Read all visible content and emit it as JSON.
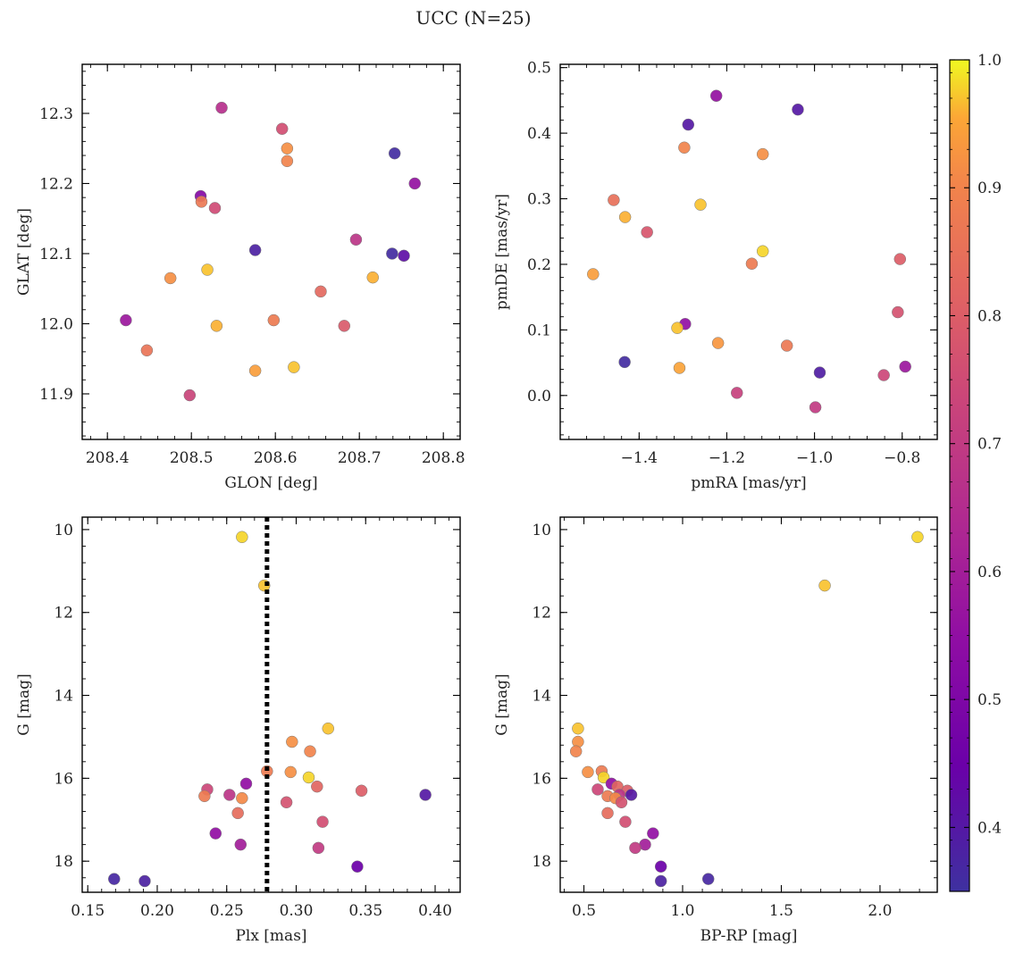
{
  "figure": {
    "title": "UCC (N=25)"
  },
  "colorbar": {
    "min": 0.35,
    "max": 1.0,
    "ticks": [
      0.4,
      0.5,
      0.6,
      0.7,
      0.8,
      0.9,
      1.0
    ],
    "tick_labels": [
      "0.4",
      "0.5",
      "0.6",
      "0.7",
      "0.8",
      "0.9",
      "1.0"
    ],
    "colormap": "plasma"
  },
  "chart_data": [
    {
      "type": "scatter",
      "xlabel": "GLON [deg]",
      "ylabel": "GLAT [deg]",
      "xlim": [
        208.37,
        208.82
      ],
      "ylim": [
        11.835,
        12.37
      ],
      "xticks": [
        208.4,
        208.5,
        208.6,
        208.7,
        208.8
      ],
      "xtick_labels": [
        "208.4",
        "208.5",
        "208.6",
        "208.7",
        "208.8"
      ],
      "yticks": [
        11.9,
        12.0,
        12.1,
        12.2,
        12.3
      ],
      "ytick_labels": [
        "11.9",
        "12.0",
        "12.1",
        "12.2",
        "12.3"
      ],
      "points": [
        {
          "x": 208.536,
          "y": 12.308,
          "c": 0.66
        },
        {
          "x": 208.608,
          "y": 12.278,
          "c": 0.76
        },
        {
          "x": 208.614,
          "y": 12.25,
          "c": 0.92
        },
        {
          "x": 208.614,
          "y": 12.232,
          "c": 0.9
        },
        {
          "x": 208.742,
          "y": 12.243,
          "c": 0.36
        },
        {
          "x": 208.766,
          "y": 12.2,
          "c": 0.56
        },
        {
          "x": 208.511,
          "y": 12.182,
          "c": 0.52
        },
        {
          "x": 208.512,
          "y": 12.174,
          "c": 0.87
        },
        {
          "x": 208.528,
          "y": 12.165,
          "c": 0.75
        },
        {
          "x": 208.696,
          "y": 12.12,
          "c": 0.68
        },
        {
          "x": 208.576,
          "y": 12.105,
          "c": 0.38
        },
        {
          "x": 208.739,
          "y": 12.1,
          "c": 0.36
        },
        {
          "x": 208.753,
          "y": 12.097,
          "c": 0.42
        },
        {
          "x": 208.519,
          "y": 12.077,
          "c": 0.97
        },
        {
          "x": 208.475,
          "y": 12.065,
          "c": 0.92
        },
        {
          "x": 208.716,
          "y": 12.066,
          "c": 0.96
        },
        {
          "x": 208.654,
          "y": 12.046,
          "c": 0.83
        },
        {
          "x": 208.422,
          "y": 12.005,
          "c": 0.58
        },
        {
          "x": 208.598,
          "y": 12.005,
          "c": 0.88
        },
        {
          "x": 208.53,
          "y": 11.997,
          "c": 0.96
        },
        {
          "x": 208.682,
          "y": 11.997,
          "c": 0.79
        },
        {
          "x": 208.447,
          "y": 11.962,
          "c": 0.86
        },
        {
          "x": 208.576,
          "y": 11.933,
          "c": 0.94
        },
        {
          "x": 208.622,
          "y": 11.938,
          "c": 0.97
        },
        {
          "x": 208.498,
          "y": 11.898,
          "c": 0.73
        }
      ]
    },
    {
      "type": "scatter",
      "xlabel": "pmRA [mas/yr]",
      "ylabel": "pmDE [mas/yr]",
      "xlim": [
        -1.58,
        -0.72
      ],
      "ylim": [
        -0.067,
        0.505
      ],
      "xticks": [
        -1.4,
        -1.2,
        -1.0,
        -0.8
      ],
      "xtick_labels": [
        "−1.4",
        "−1.2",
        "−1.0",
        "−0.8"
      ],
      "yticks": [
        0.0,
        0.1,
        0.2,
        0.3,
        0.4,
        0.5
      ],
      "ytick_labels": [
        "0.0",
        "0.1",
        "0.2",
        "0.3",
        "0.4",
        "0.5"
      ],
      "points": [
        {
          "x": -1.224,
          "y": 0.457,
          "c": 0.56
        },
        {
          "x": -1.038,
          "y": 0.436,
          "c": 0.4
        },
        {
          "x": -1.288,
          "y": 0.413,
          "c": 0.4
        },
        {
          "x": -1.297,
          "y": 0.378,
          "c": 0.9
        },
        {
          "x": -1.118,
          "y": 0.368,
          "c": 0.92
        },
        {
          "x": -1.458,
          "y": 0.298,
          "c": 0.85
        },
        {
          "x": -1.26,
          "y": 0.291,
          "c": 0.97
        },
        {
          "x": -1.432,
          "y": 0.272,
          "c": 0.96
        },
        {
          "x": -1.382,
          "y": 0.249,
          "c": 0.78
        },
        {
          "x": -1.118,
          "y": 0.22,
          "c": 0.98
        },
        {
          "x": -0.805,
          "y": 0.208,
          "c": 0.8
        },
        {
          "x": -1.143,
          "y": 0.201,
          "c": 0.88
        },
        {
          "x": -1.505,
          "y": 0.185,
          "c": 0.94
        },
        {
          "x": -0.81,
          "y": 0.127,
          "c": 0.77
        },
        {
          "x": -1.295,
          "y": 0.109,
          "c": 0.55
        },
        {
          "x": -1.313,
          "y": 0.103,
          "c": 0.97
        },
        {
          "x": -1.22,
          "y": 0.08,
          "c": 0.93
        },
        {
          "x": -1.063,
          "y": 0.076,
          "c": 0.87
        },
        {
          "x": -1.433,
          "y": 0.051,
          "c": 0.36
        },
        {
          "x": -1.308,
          "y": 0.042,
          "c": 0.95
        },
        {
          "x": -0.793,
          "y": 0.044,
          "c": 0.58
        },
        {
          "x": -0.988,
          "y": 0.035,
          "c": 0.39
        },
        {
          "x": -1.177,
          "y": 0.004,
          "c": 0.72
        },
        {
          "x": -0.842,
          "y": 0.031,
          "c": 0.74
        },
        {
          "x": -0.998,
          "y": -0.018,
          "c": 0.7
        }
      ]
    },
    {
      "type": "scatter",
      "xlabel": "Plx [mas]",
      "ylabel": "G [mag]",
      "xlim": [
        0.146,
        0.418
      ],
      "ylim": [
        18.75,
        9.7
      ],
      "y_inverted": true,
      "xticks": [
        0.15,
        0.2,
        0.25,
        0.3,
        0.35,
        0.4
      ],
      "xtick_labels": [
        "0.15",
        "0.20",
        "0.25",
        "0.30",
        "0.35",
        "0.40"
      ],
      "yticks": [
        10,
        12,
        14,
        16,
        18
      ],
      "ytick_labels": [
        "10",
        "12",
        "14",
        "16",
        "18"
      ],
      "vline": {
        "x": 0.279,
        "style": "dotted"
      },
      "points": [
        {
          "x": 0.261,
          "y": 10.18,
          "c": 0.98
        },
        {
          "x": 0.277,
          "y": 11.35,
          "c": 0.97
        },
        {
          "x": 0.323,
          "y": 14.8,
          "c": 0.97
        },
        {
          "x": 0.297,
          "y": 15.12,
          "c": 0.92
        },
        {
          "x": 0.31,
          "y": 15.35,
          "c": 0.9
        },
        {
          "x": 0.279,
          "y": 15.83,
          "c": 0.88
        },
        {
          "x": 0.296,
          "y": 15.85,
          "c": 0.92
        },
        {
          "x": 0.309,
          "y": 15.98,
          "c": 0.98
        },
        {
          "x": 0.264,
          "y": 16.13,
          "c": 0.55
        },
        {
          "x": 0.315,
          "y": 16.2,
          "c": 0.82
        },
        {
          "x": 0.236,
          "y": 16.27,
          "c": 0.74
        },
        {
          "x": 0.347,
          "y": 16.3,
          "c": 0.8
        },
        {
          "x": 0.252,
          "y": 16.4,
          "c": 0.68
        },
        {
          "x": 0.234,
          "y": 16.43,
          "c": 0.88
        },
        {
          "x": 0.393,
          "y": 16.4,
          "c": 0.4
        },
        {
          "x": 0.261,
          "y": 16.48,
          "c": 0.91
        },
        {
          "x": 0.293,
          "y": 16.58,
          "c": 0.77
        },
        {
          "x": 0.258,
          "y": 16.84,
          "c": 0.84
        },
        {
          "x": 0.319,
          "y": 17.05,
          "c": 0.76
        },
        {
          "x": 0.242,
          "y": 17.33,
          "c": 0.55
        },
        {
          "x": 0.26,
          "y": 17.6,
          "c": 0.6
        },
        {
          "x": 0.316,
          "y": 17.68,
          "c": 0.7
        },
        {
          "x": 0.344,
          "y": 18.13,
          "c": 0.45
        },
        {
          "x": 0.169,
          "y": 18.43,
          "c": 0.37
        },
        {
          "x": 0.191,
          "y": 18.48,
          "c": 0.38
        }
      ]
    },
    {
      "type": "scatter",
      "xlabel": "BP-RP [mag]",
      "ylabel": "G [mag]",
      "xlim": [
        0.38,
        2.29
      ],
      "ylim": [
        18.75,
        9.7
      ],
      "y_inverted": true,
      "xticks": [
        0.5,
        1.0,
        1.5,
        2.0
      ],
      "xtick_labels": [
        "0.5",
        "1.0",
        "1.5",
        "2.0"
      ],
      "yticks": [
        10,
        12,
        14,
        16,
        18
      ],
      "ytick_labels": [
        "10",
        "12",
        "14",
        "16",
        "18"
      ],
      "points": [
        {
          "x": 2.19,
          "y": 10.18,
          "c": 0.98
        },
        {
          "x": 1.72,
          "y": 11.35,
          "c": 0.97
        },
        {
          "x": 0.47,
          "y": 14.8,
          "c": 0.97
        },
        {
          "x": 0.47,
          "y": 15.12,
          "c": 0.92
        },
        {
          "x": 0.46,
          "y": 15.35,
          "c": 0.9
        },
        {
          "x": 0.52,
          "y": 15.85,
          "c": 0.92
        },
        {
          "x": 0.59,
          "y": 15.83,
          "c": 0.88
        },
        {
          "x": 0.6,
          "y": 15.98,
          "c": 0.98
        },
        {
          "x": 0.64,
          "y": 16.13,
          "c": 0.55
        },
        {
          "x": 0.57,
          "y": 16.27,
          "c": 0.74
        },
        {
          "x": 0.67,
          "y": 16.2,
          "c": 0.82
        },
        {
          "x": 0.72,
          "y": 16.3,
          "c": 0.8
        },
        {
          "x": 0.68,
          "y": 16.4,
          "c": 0.68
        },
        {
          "x": 0.62,
          "y": 16.43,
          "c": 0.88
        },
        {
          "x": 0.74,
          "y": 16.4,
          "c": 0.4
        },
        {
          "x": 0.66,
          "y": 16.48,
          "c": 0.91
        },
        {
          "x": 0.69,
          "y": 16.58,
          "c": 0.77
        },
        {
          "x": 0.62,
          "y": 16.84,
          "c": 0.84
        },
        {
          "x": 0.71,
          "y": 17.05,
          "c": 0.76
        },
        {
          "x": 0.85,
          "y": 17.33,
          "c": 0.55
        },
        {
          "x": 0.81,
          "y": 17.6,
          "c": 0.6
        },
        {
          "x": 0.76,
          "y": 17.68,
          "c": 0.7
        },
        {
          "x": 0.89,
          "y": 18.13,
          "c": 0.45
        },
        {
          "x": 1.13,
          "y": 18.43,
          "c": 0.37
        },
        {
          "x": 0.89,
          "y": 18.48,
          "c": 0.38
        }
      ]
    }
  ]
}
